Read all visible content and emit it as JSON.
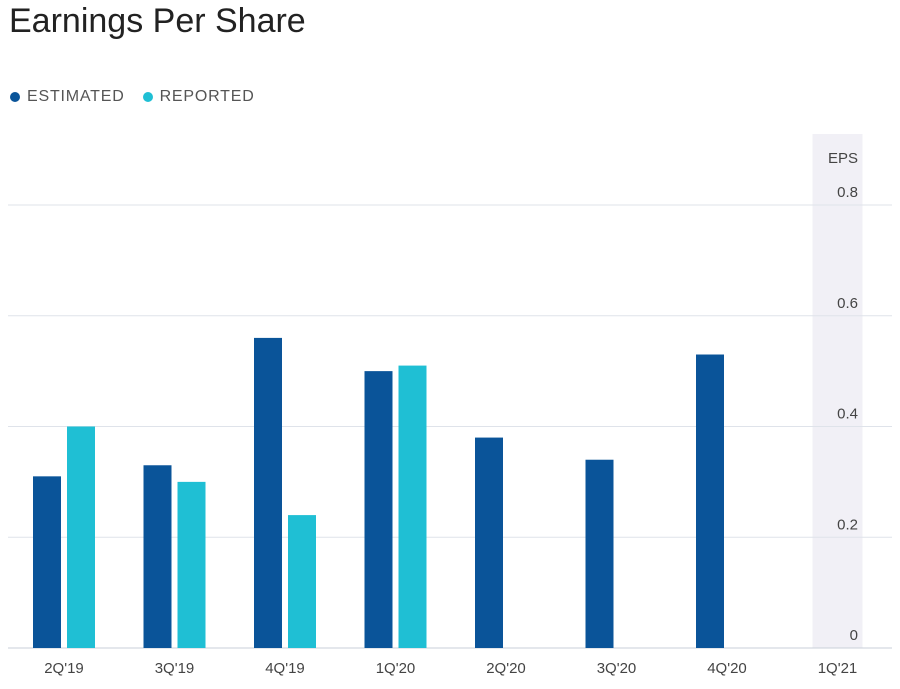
{
  "title": "Earnings Per Share",
  "legend": [
    {
      "label": "ESTIMATED",
      "color": "#0a5499"
    },
    {
      "label": "REPORTED",
      "color": "#1fbfd4"
    }
  ],
  "chart_data": {
    "type": "bar",
    "title": "Earnings Per Share",
    "xlabel": "",
    "ylabel": "EPS",
    "categories": [
      "2Q'19",
      "3Q'19",
      "4Q'19",
      "1Q'20",
      "2Q'20",
      "3Q'20",
      "4Q'20",
      "1Q'21"
    ],
    "series": [
      {
        "name": "ESTIMATED",
        "color": "#0a5499",
        "values": [
          0.31,
          0.33,
          0.56,
          0.5,
          0.38,
          0.34,
          0.53,
          null
        ]
      },
      {
        "name": "REPORTED",
        "color": "#1fbfd4",
        "values": [
          0.4,
          0.3,
          0.24,
          0.51,
          null,
          null,
          null,
          null
        ]
      }
    ],
    "yticks": [
      0,
      0.2,
      0.4,
      0.6,
      0.8
    ],
    "ytick_labels": [
      "0",
      "0.2",
      "0.4",
      "0.6",
      "0.8"
    ],
    "ylim": [
      0,
      0.8
    ],
    "grid": true,
    "legend_position": "top-left",
    "highlighted_category": "1Q'21",
    "highlight_color": "#f1f0f6"
  }
}
